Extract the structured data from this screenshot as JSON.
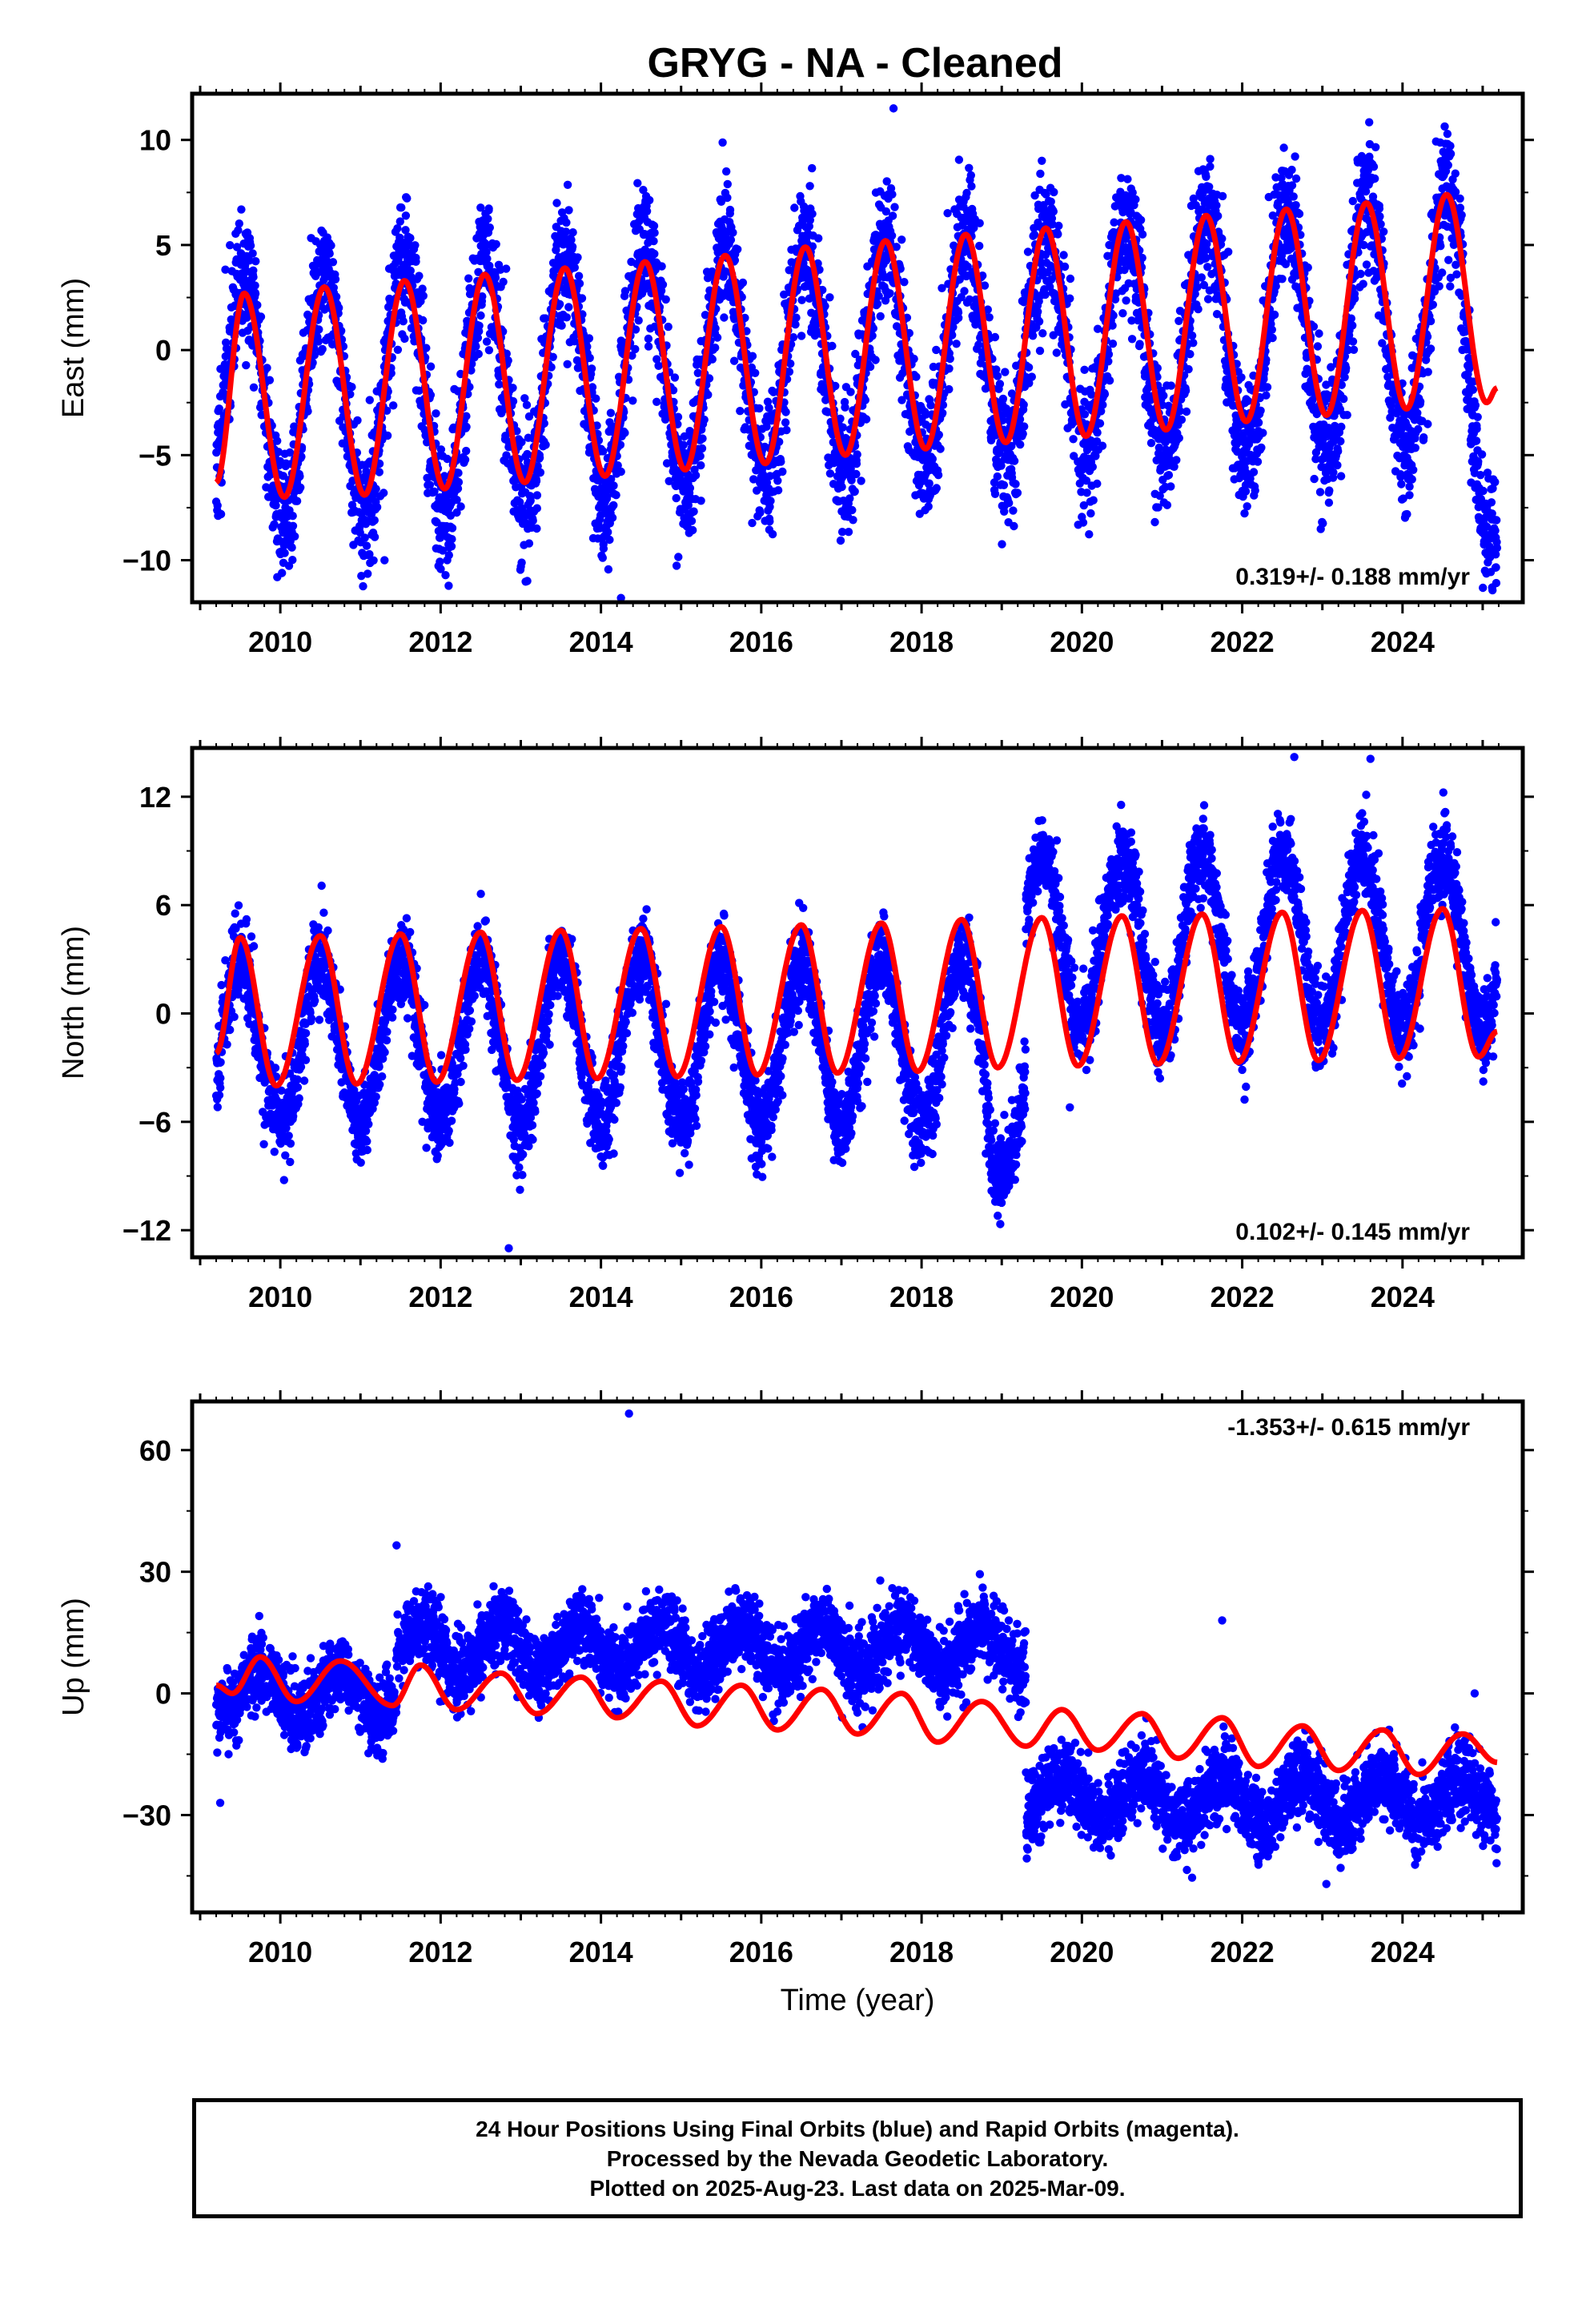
{
  "title": "GRYG  - NA - Cleaned",
  "colors": {
    "data": "#0000ff",
    "model": "#ff0000",
    "frame": "#000000"
  },
  "caption": {
    "line1": "24 Hour Positions Using Final Orbits (blue) and Rapid Orbits (magenta).",
    "line2": "Processed by the Nevada Geodetic Laboratory.",
    "line3": "Plotted on 2025-Aug-23. Last data on 2025-Mar-09."
  },
  "chart_data": [
    {
      "type": "scatter",
      "ylabel": "East (mm)",
      "xlim": [
        2008.9,
        2025.5
      ],
      "ylim": [
        -12,
        12.2
      ],
      "yticks": [
        -10,
        -5,
        0,
        5,
        10
      ],
      "yticklabels": [
        "−10",
        "−5",
        "0",
        "5",
        "10"
      ],
      "xticks": [
        2010,
        2012,
        2014,
        2016,
        2018,
        2020,
        2022,
        2024
      ],
      "rate_label": "0.319+/- 0.188 mm/yr",
      "rate_position": "bottom-right",
      "data_range": [
        2009.2,
        2025.18
      ],
      "model": {
        "offset": -1.8,
        "trend": 0.319,
        "amp": 4.8,
        "amp_growth": 0.05,
        "phase_peak": 0.55,
        "x_start": 2009.2,
        "x_end": 2025.18,
        "knots_x": [
          2009.2,
          2009.55,
          2010.05,
          2010.55,
          2011.05,
          2011.55,
          2012.05,
          2012.55,
          2013.05,
          2013.55,
          2014.05,
          2014.55,
          2015.05,
          2015.55,
          2016.05,
          2016.55,
          2017.05,
          2017.55,
          2018.05,
          2018.55,
          2019.05,
          2019.55,
          2020.05,
          2020.55,
          2021.05,
          2021.55,
          2022.05,
          2022.55,
          2023.05,
          2023.55,
          2024.05,
          2024.55,
          2025.05,
          2025.18
        ],
        "knots_y": [
          -6.3,
          2.7,
          -7.0,
          3.0,
          -6.9,
          3.3,
          -6.6,
          3.6,
          -6.3,
          3.9,
          -6.0,
          4.2,
          -5.7,
          4.5,
          -5.4,
          4.9,
          -5.0,
          5.2,
          -4.7,
          5.5,
          -4.4,
          5.8,
          -4.1,
          6.1,
          -3.8,
          6.4,
          -3.4,
          6.7,
          -3.1,
          7.0,
          -2.8,
          7.4,
          -2.5,
          -1.8
        ]
      },
      "scatter": {
        "n": 5600,
        "noise": 1.6,
        "amp": 5.6,
        "trend_from": -2.4,
        "trend_to": 1.6,
        "end_drop": -6.5,
        "seed": 11,
        "gaps": [
          [
            2019.9,
            2019.95
          ]
        ],
        "outliers": [
          [
            2014.25,
            -11.8
          ],
          [
            2011.3,
            -10.0
          ],
          [
            2017.65,
            11.5
          ]
        ]
      }
    },
    {
      "type": "scatter",
      "ylabel": "North (mm)",
      "xlim": [
        2008.9,
        2025.5
      ],
      "ylim": [
        -13.5,
        14.7
      ],
      "yticks": [
        -12,
        -6,
        0,
        6,
        12
      ],
      "yticklabels": [
        "−12",
        "−6",
        "0",
        "6",
        "12"
      ],
      "xticks": [
        2010,
        2012,
        2014,
        2016,
        2018,
        2020,
        2022,
        2024
      ],
      "rate_label": "0.102+/- 0.145 mm/yr",
      "rate_position": "bottom-right",
      "data_range": [
        2009.2,
        2025.18
      ],
      "model": {
        "x_start": 2009.2,
        "x_end": 2025.18,
        "knots_x": [
          2009.2,
          2009.5,
          2009.95,
          2010.5,
          2010.95,
          2011.5,
          2011.95,
          2012.5,
          2012.95,
          2013.5,
          2013.95,
          2014.5,
          2014.95,
          2015.5,
          2015.95,
          2016.5,
          2016.95,
          2017.5,
          2017.95,
          2018.5,
          2018.95,
          2019.5,
          2019.95,
          2020.5,
          2020.95,
          2021.5,
          2021.95,
          2022.5,
          2022.95,
          2023.5,
          2023.95,
          2024.5,
          2024.95,
          2025.18
        ],
        "knots_y": [
          -2.2,
          4.2,
          -4.0,
          4.3,
          -3.9,
          4.4,
          -3.8,
          4.5,
          -3.7,
          4.6,
          -3.6,
          4.7,
          -3.5,
          4.8,
          -3.4,
          4.9,
          -3.3,
          5.0,
          -3.2,
          5.2,
          -3.0,
          5.3,
          -2.9,
          5.4,
          -2.8,
          5.5,
          -2.7,
          5.6,
          -2.6,
          5.7,
          -2.5,
          5.8,
          -2.4,
          -1.0
        ]
      },
      "scatter": {
        "n": 5600,
        "noise": 1.2,
        "amp": 4.6,
        "base_before": -1.6,
        "base_after": 4.0,
        "step_at": 2019.3,
        "amp_after": 4.8,
        "seed": 23,
        "outliers": [
          [
            2012.85,
            -13.0
          ],
          [
            2018.95,
            -11.2
          ],
          [
            2019.85,
            -5.2
          ],
          [
            2022.65,
            14.2
          ],
          [
            2023.6,
            14.1
          ]
        ]
      }
    },
    {
      "type": "scatter",
      "ylabel": "Up (mm)",
      "xlabel": "Time (year)",
      "xlim": [
        2008.9,
        2025.5
      ],
      "ylim": [
        -54,
        72
      ],
      "yticks": [
        -30,
        0,
        30,
        60
      ],
      "yticklabels": [
        "−30",
        "0",
        "30",
        "60"
      ],
      "xticks": [
        2010,
        2012,
        2014,
        2016,
        2018,
        2020,
        2022,
        2024
      ],
      "rate_label": "-1.353+/- 0.615 mm/yr",
      "rate_position": "top-right",
      "data_range": [
        2009.2,
        2025.18
      ],
      "model": {
        "x_start": 2009.2,
        "x_end": 2025.18,
        "knots_x": [
          2009.2,
          2009.4,
          2009.75,
          2010.2,
          2010.75,
          2011.4,
          2011.75,
          2012.2,
          2012.75,
          2013.2,
          2013.75,
          2014.2,
          2014.75,
          2015.2,
          2015.75,
          2016.2,
          2016.75,
          2017.2,
          2017.75,
          2018.2,
          2018.75,
          2019.3,
          2019.75,
          2020.2,
          2020.75,
          2021.2,
          2021.75,
          2022.2,
          2022.75,
          2023.2,
          2023.75,
          2024.2,
          2024.75,
          2025.18
        ],
        "knots_y": [
          2,
          0,
          9,
          -2,
          8,
          -3,
          7,
          -4,
          5,
          -5,
          4,
          -6,
          3,
          -8,
          2,
          -9,
          1,
          -10,
          0,
          -12,
          -2,
          -13,
          -4,
          -14,
          -5,
          -16,
          -6,
          -18,
          -8,
          -19,
          -9,
          -20,
          -10,
          -17
        ]
      },
      "scatter": {
        "n": 5600,
        "noise": 4.5,
        "amp": 5.5,
        "seed": 37,
        "segments": [
          [
            2009.2,
            2011.45,
            0
          ],
          [
            2011.45,
            2019.3,
            11
          ],
          [
            2019.3,
            2025.18,
            -26
          ]
        ],
        "outliers": [
          [
            2014.35,
            69
          ],
          [
            2011.45,
            36.5
          ],
          [
            2009.25,
            -27
          ],
          [
            2021.75,
            18
          ],
          [
            2023.05,
            -47
          ],
          [
            2024.9,
            0
          ]
        ]
      }
    }
  ]
}
